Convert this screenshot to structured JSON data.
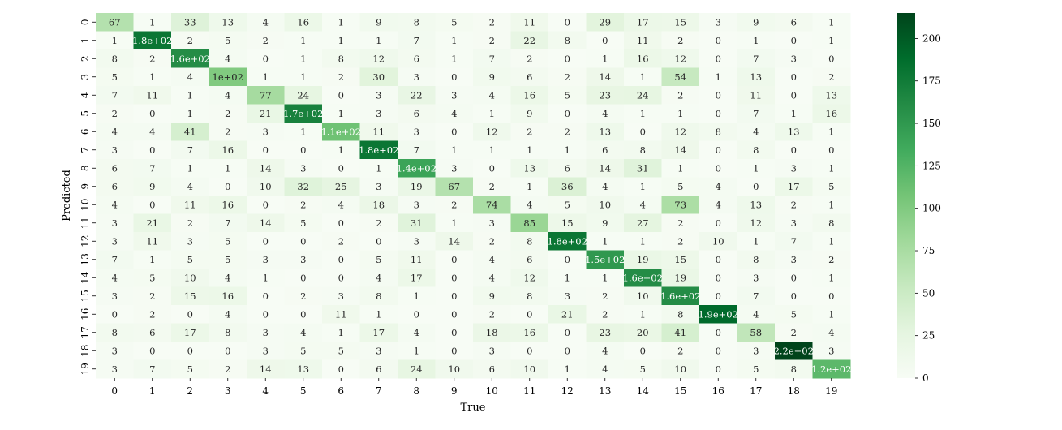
{
  "chart_data": {
    "type": "heatmap",
    "xlabel": "True",
    "ylabel": "Predicted",
    "x_categories": [
      "0",
      "1",
      "2",
      "3",
      "4",
      "5",
      "6",
      "7",
      "8",
      "9",
      "10",
      "11",
      "12",
      "13",
      "14",
      "15",
      "16",
      "17",
      "18",
      "19"
    ],
    "y_categories": [
      "0",
      "1",
      "2",
      "3",
      "4",
      "5",
      "6",
      "7",
      "8",
      "9",
      "10",
      "11",
      "12",
      "13",
      "14",
      "15",
      "16",
      "17",
      "18",
      "19"
    ],
    "values": [
      [
        67,
        1,
        33,
        13,
        4,
        16,
        1,
        9,
        8,
        5,
        2,
        11,
        0,
        29,
        17,
        15,
        3,
        9,
        6,
        1
      ],
      [
        1,
        180,
        2,
        5,
        2,
        1,
        1,
        1,
        7,
        1,
        2,
        22,
        8,
        0,
        11,
        2,
        0,
        1,
        0,
        1
      ],
      [
        8,
        2,
        160,
        4,
        0,
        1,
        8,
        12,
        6,
        1,
        7,
        2,
        0,
        1,
        16,
        12,
        0,
        7,
        3,
        0
      ],
      [
        5,
        1,
        4,
        100,
        1,
        1,
        2,
        30,
        3,
        0,
        9,
        6,
        2,
        14,
        1,
        54,
        1,
        13,
        0,
        2
      ],
      [
        7,
        11,
        1,
        4,
        77,
        24,
        0,
        3,
        22,
        3,
        4,
        16,
        5,
        23,
        24,
        2,
        0,
        11,
        0,
        13
      ],
      [
        2,
        0,
        1,
        2,
        21,
        170,
        1,
        3,
        6,
        4,
        1,
        9,
        0,
        4,
        1,
        1,
        0,
        7,
        1,
        16
      ],
      [
        4,
        4,
        41,
        2,
        3,
        1,
        110,
        11,
        3,
        0,
        12,
        2,
        2,
        13,
        0,
        12,
        8,
        4,
        13,
        1
      ],
      [
        3,
        0,
        7,
        16,
        0,
        0,
        1,
        180,
        7,
        1,
        1,
        1,
        1,
        6,
        8,
        14,
        0,
        8,
        0,
        0
      ],
      [
        6,
        7,
        1,
        1,
        14,
        3,
        0,
        1,
        140,
        3,
        0,
        13,
        6,
        14,
        31,
        1,
        0,
        1,
        3,
        1
      ],
      [
        6,
        9,
        4,
        0,
        10,
        32,
        25,
        3,
        19,
        67,
        2,
        1,
        36,
        4,
        1,
        5,
        4,
        0,
        17,
        5
      ],
      [
        4,
        0,
        11,
        16,
        0,
        2,
        4,
        18,
        3,
        2,
        74,
        4,
        5,
        10,
        4,
        73,
        4,
        13,
        2,
        1
      ],
      [
        3,
        21,
        2,
        7,
        14,
        5,
        0,
        2,
        31,
        1,
        3,
        85,
        15,
        9,
        27,
        2,
        0,
        12,
        3,
        8
      ],
      [
        3,
        11,
        3,
        5,
        0,
        0,
        2,
        0,
        3,
        14,
        2,
        8,
        180,
        1,
        1,
        2,
        10,
        1,
        7,
        1
      ],
      [
        7,
        1,
        5,
        5,
        3,
        3,
        0,
        5,
        11,
        0,
        4,
        6,
        0,
        150,
        19,
        15,
        0,
        8,
        3,
        2
      ],
      [
        4,
        5,
        10,
        4,
        1,
        0,
        0,
        4,
        17,
        0,
        4,
        12,
        1,
        1,
        160,
        19,
        0,
        3,
        0,
        1
      ],
      [
        3,
        2,
        15,
        16,
        0,
        2,
        3,
        8,
        1,
        0,
        9,
        8,
        3,
        2,
        10,
        160,
        0,
        7,
        0,
        0
      ],
      [
        0,
        2,
        0,
        4,
        0,
        0,
        11,
        1,
        0,
        0,
        2,
        0,
        21,
        2,
        1,
        8,
        190,
        4,
        5,
        1
      ],
      [
        8,
        6,
        17,
        8,
        3,
        4,
        1,
        17,
        4,
        0,
        18,
        16,
        0,
        23,
        20,
        41,
        0,
        58,
        2,
        4
      ],
      [
        3,
        0,
        0,
        0,
        3,
        5,
        5,
        3,
        1,
        0,
        3,
        0,
        0,
        4,
        0,
        2,
        0,
        3,
        220,
        3
      ],
      [
        3,
        7,
        5,
        2,
        14,
        13,
        0,
        6,
        24,
        10,
        6,
        10,
        1,
        4,
        5,
        10,
        0,
        5,
        8,
        120
      ]
    ],
    "cell_labels": [
      [
        "67",
        "1",
        "33",
        "13",
        "4",
        "16",
        "1",
        "9",
        "8",
        "5",
        "2",
        "11",
        "0",
        "29",
        "17",
        "15",
        "3",
        "9",
        "6",
        "1"
      ],
      [
        "1",
        "1.8e+02",
        "2",
        "5",
        "2",
        "1",
        "1",
        "1",
        "7",
        "1",
        "2",
        "22",
        "8",
        "0",
        "11",
        "2",
        "0",
        "1",
        "0",
        "1"
      ],
      [
        "8",
        "2",
        "1.6e+02",
        "4",
        "0",
        "1",
        "8",
        "12",
        "6",
        "1",
        "7",
        "2",
        "0",
        "1",
        "16",
        "12",
        "0",
        "7",
        "3",
        "0"
      ],
      [
        "5",
        "1",
        "4",
        "1e+02",
        "1",
        "1",
        "2",
        "30",
        "3",
        "0",
        "9",
        "6",
        "2",
        "14",
        "1",
        "54",
        "1",
        "13",
        "0",
        "2"
      ],
      [
        "7",
        "11",
        "1",
        "4",
        "77",
        "24",
        "0",
        "3",
        "22",
        "3",
        "4",
        "16",
        "5",
        "23",
        "24",
        "2",
        "0",
        "11",
        "0",
        "13"
      ],
      [
        "2",
        "0",
        "1",
        "2",
        "21",
        "1.7e+02",
        "1",
        "3",
        "6",
        "4",
        "1",
        "9",
        "0",
        "4",
        "1",
        "1",
        "0",
        "7",
        "1",
        "16"
      ],
      [
        "4",
        "4",
        "41",
        "2",
        "3",
        "1",
        "1.1e+02",
        "11",
        "3",
        "0",
        "12",
        "2",
        "2",
        "13",
        "0",
        "12",
        "8",
        "4",
        "13",
        "1"
      ],
      [
        "3",
        "0",
        "7",
        "16",
        "0",
        "0",
        "1",
        "1.8e+02",
        "7",
        "1",
        "1",
        "1",
        "1",
        "6",
        "8",
        "14",
        "0",
        "8",
        "0",
        "0"
      ],
      [
        "6",
        "7",
        "1",
        "1",
        "14",
        "3",
        "0",
        "1",
        "1.4e+02",
        "3",
        "0",
        "13",
        "6",
        "14",
        "31",
        "1",
        "0",
        "1",
        "3",
        "1"
      ],
      [
        "6",
        "9",
        "4",
        "0",
        "10",
        "32",
        "25",
        "3",
        "19",
        "67",
        "2",
        "1",
        "36",
        "4",
        "1",
        "5",
        "4",
        "0",
        "17",
        "5"
      ],
      [
        "4",
        "0",
        "11",
        "16",
        "0",
        "2",
        "4",
        "18",
        "3",
        "2",
        "74",
        "4",
        "5",
        "10",
        "4",
        "73",
        "4",
        "13",
        "2",
        "1"
      ],
      [
        "3",
        "21",
        "2",
        "7",
        "14",
        "5",
        "0",
        "2",
        "31",
        "1",
        "3",
        "85",
        "15",
        "9",
        "27",
        "2",
        "0",
        "12",
        "3",
        "8"
      ],
      [
        "3",
        "11",
        "3",
        "5",
        "0",
        "0",
        "2",
        "0",
        "3",
        "14",
        "2",
        "8",
        "1.8e+02",
        "1",
        "1",
        "2",
        "10",
        "1",
        "7",
        "1"
      ],
      [
        "7",
        "1",
        "5",
        "5",
        "3",
        "3",
        "0",
        "5",
        "11",
        "0",
        "4",
        "6",
        "0",
        "1.5e+02",
        "19",
        "15",
        "0",
        "8",
        "3",
        "2"
      ],
      [
        "4",
        "5",
        "10",
        "4",
        "1",
        "0",
        "0",
        "4",
        "17",
        "0",
        "4",
        "12",
        "1",
        "1",
        "1.6e+02",
        "19",
        "0",
        "3",
        "0",
        "1"
      ],
      [
        "3",
        "2",
        "15",
        "16",
        "0",
        "2",
        "3",
        "8",
        "1",
        "0",
        "9",
        "8",
        "3",
        "2",
        "10",
        "1.6e+02",
        "0",
        "7",
        "0",
        "0"
      ],
      [
        "0",
        "2",
        "0",
        "4",
        "0",
        "0",
        "11",
        "1",
        "0",
        "0",
        "2",
        "0",
        "21",
        "2",
        "1",
        "8",
        "1.9e+02",
        "4",
        "5",
        "1"
      ],
      [
        "8",
        "6",
        "17",
        "8",
        "3",
        "4",
        "1",
        "17",
        "4",
        "0",
        "18",
        "16",
        "0",
        "23",
        "20",
        "41",
        "0",
        "58",
        "2",
        "4"
      ],
      [
        "3",
        "0",
        "0",
        "0",
        "3",
        "5",
        "5",
        "3",
        "1",
        "0",
        "3",
        "0",
        "0",
        "4",
        "0",
        "2",
        "0",
        "3",
        "2.2e+02",
        "3"
      ],
      [
        "3",
        "7",
        "5",
        "2",
        "14",
        "13",
        "0",
        "6",
        "24",
        "10",
        "6",
        "10",
        "1",
        "4",
        "5",
        "10",
        "0",
        "5",
        "8",
        "1.2e+02"
      ]
    ],
    "colorbar": {
      "range": [
        0,
        215
      ],
      "ticks": [
        0,
        25,
        50,
        75,
        100,
        125,
        150,
        175,
        200
      ],
      "colormap": "Greens",
      "low_color": "#f7fcf5",
      "high_color": "#00441b"
    },
    "grid": false
  }
}
